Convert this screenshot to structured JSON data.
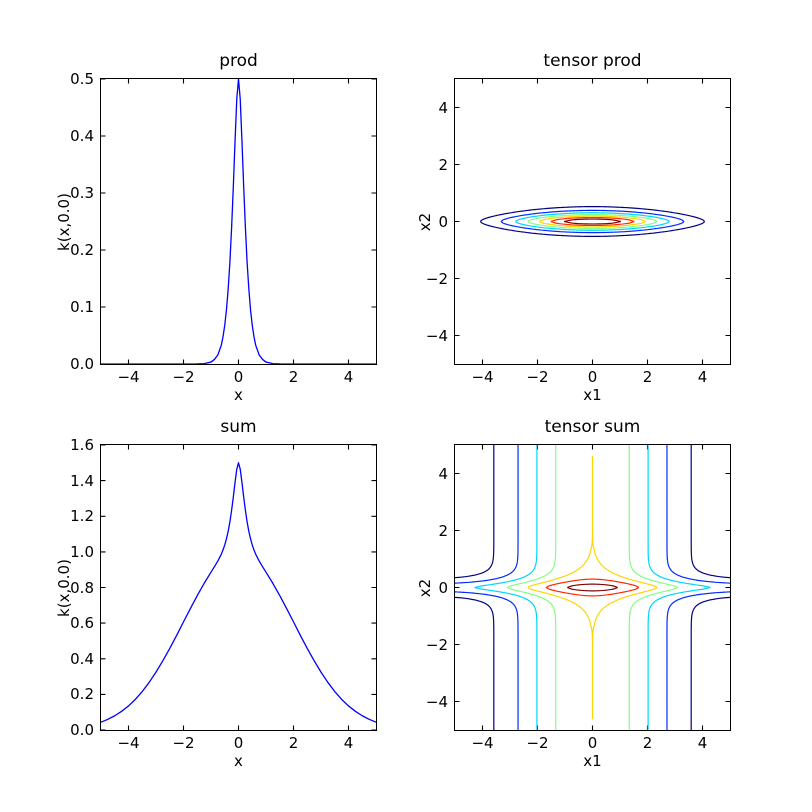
{
  "figure": {
    "background": "#ffffff",
    "text_color": "#000000",
    "spine_color": "#000000"
  },
  "chart_data": [
    {
      "id": "prod",
      "type": "line",
      "title": "prod",
      "xlabel": "x",
      "ylabel": "k(x,0.0)",
      "xlim": [
        -5,
        5
      ],
      "ylim": [
        0,
        0.5
      ],
      "xtick_values": [
        -4,
        -2,
        0,
        2,
        4
      ],
      "xtick_labels": [
        "−4",
        "−2",
        "0",
        "2",
        "4"
      ],
      "ytick_values": [
        0,
        0.1,
        0.2,
        0.3,
        0.4,
        0.5
      ],
      "ytick_labels": [
        "0.0",
        "0.1",
        "0.2",
        "0.3",
        "0.4",
        "0.5"
      ],
      "grid": false,
      "legend": null,
      "line_color": "#0000ff",
      "samples": {
        "symmetric": true,
        "x": [
          0,
          0.0625,
          0.125,
          0.1875,
          0.25,
          0.3125,
          0.375,
          0.4375,
          0.5,
          0.5625,
          0.625,
          0.75,
          0.875,
          1.0,
          1.25,
          1.5,
          2.0,
          3.0,
          4.0,
          5.0
        ],
        "y": [
          0.5,
          0.465,
          0.392,
          0.312,
          0.24,
          0.179,
          0.132,
          0.095,
          0.068,
          0.048,
          0.033,
          0.016,
          0.008,
          0.0034,
          0.0007,
          0.0002,
          0,
          0,
          0,
          0
        ]
      }
    },
    {
      "id": "tensor_prod",
      "type": "contour",
      "title": "tensor prod",
      "xlabel": "x1",
      "ylabel": "x2",
      "xlim": [
        -5,
        5
      ],
      "ylim": [
        -5,
        5
      ],
      "xtick_values": [
        -4,
        -2,
        0,
        2,
        4
      ],
      "xtick_labels": [
        "−4",
        "−2",
        "0",
        "2",
        "4"
      ],
      "ytick_values": [
        -4,
        -2,
        0,
        2,
        4
      ],
      "ytick_labels": [
        "−4",
        "−2",
        "0",
        "2",
        "4"
      ],
      "grid": false,
      "legend": null,
      "op": "mul",
      "kernels": {
        "k1": {
          "type": "rbf",
          "variance": 1.0,
          "lengthscale": 2.0,
          "axis": "x1"
        },
        "k2": {
          "type": "matern32",
          "variance": 0.5,
          "lengthscale": 0.25,
          "axis": "x2"
        }
      },
      "z_max": 0.5,
      "levels": [
        0.0625,
        0.125,
        0.1875,
        0.25,
        0.3125,
        0.375,
        0.4375
      ],
      "level_colors": [
        "#000080",
        "#002bff",
        "#00d4ff",
        "#80ff80",
        "#ffd400",
        "#ff2b00",
        "#800000"
      ]
    },
    {
      "id": "sum",
      "type": "line",
      "title": "sum",
      "xlabel": "x",
      "ylabel": "k(x,0.0)",
      "xlim": [
        -5,
        5
      ],
      "ylim": [
        0,
        1.6
      ],
      "xtick_values": [
        -4,
        -2,
        0,
        2,
        4
      ],
      "xtick_labels": [
        "−4",
        "−2",
        "0",
        "2",
        "4"
      ],
      "ytick_values": [
        0,
        0.2,
        0.4,
        0.6,
        0.8,
        1.0,
        1.2,
        1.4,
        1.6
      ],
      "ytick_labels": [
        "0.0",
        "0.2",
        "0.4",
        "0.6",
        "0.8",
        "1.0",
        "1.2",
        "1.4",
        "1.6"
      ],
      "grid": false,
      "legend": null,
      "line_color": "#0000ff",
      "samples": {
        "symmetric": true,
        "x": [
          0,
          0.0625,
          0.125,
          0.1875,
          0.25,
          0.3125,
          0.375,
          0.4375,
          0.5,
          0.5625,
          0.625,
          0.75,
          0.875,
          1.0,
          1.25,
          1.5,
          1.75,
          2.0,
          2.25,
          2.5,
          2.75,
          3.0,
          3.25,
          3.5,
          3.75,
          4.0,
          4.25,
          4.5,
          4.75,
          5.0
        ],
        "y": [
          1.5,
          1.464,
          1.391,
          1.309,
          1.234,
          1.169,
          1.116,
          1.074,
          1.039,
          1.011,
          0.987,
          0.949,
          0.917,
          0.886,
          0.823,
          0.755,
          0.682,
          0.607,
          0.531,
          0.458,
          0.389,
          0.325,
          0.267,
          0.216,
          0.172,
          0.135,
          0.105,
          0.08,
          0.06,
          0.044
        ]
      }
    },
    {
      "id": "tensor_sum",
      "type": "contour",
      "title": "tensor sum",
      "xlabel": "x1",
      "ylabel": "x2",
      "xlim": [
        -5,
        5
      ],
      "ylim": [
        -5,
        5
      ],
      "xtick_values": [
        -4,
        -2,
        0,
        2,
        4
      ],
      "xtick_labels": [
        "−4",
        "−2",
        "0",
        "2",
        "4"
      ],
      "ytick_values": [
        -4,
        -2,
        0,
        2,
        4
      ],
      "ytick_labels": [
        "−4",
        "−2",
        "0",
        "2",
        "4"
      ],
      "grid": false,
      "legend": null,
      "op": "add",
      "kernels": {
        "k1": {
          "type": "rbf",
          "variance": 1.0,
          "lengthscale": 2.0,
          "axis": "x1"
        },
        "k2": {
          "type": "matern32",
          "variance": 0.5,
          "lengthscale": 0.25,
          "axis": "x2"
        }
      },
      "z_max": 1.5,
      "levels": [
        0.2,
        0.4,
        0.6,
        0.8,
        1.0,
        1.2,
        1.4
      ],
      "level_colors": [
        "#000080",
        "#002bff",
        "#00d4ff",
        "#80ff80",
        "#ffd400",
        "#ff2b00",
        "#800000"
      ]
    }
  ]
}
